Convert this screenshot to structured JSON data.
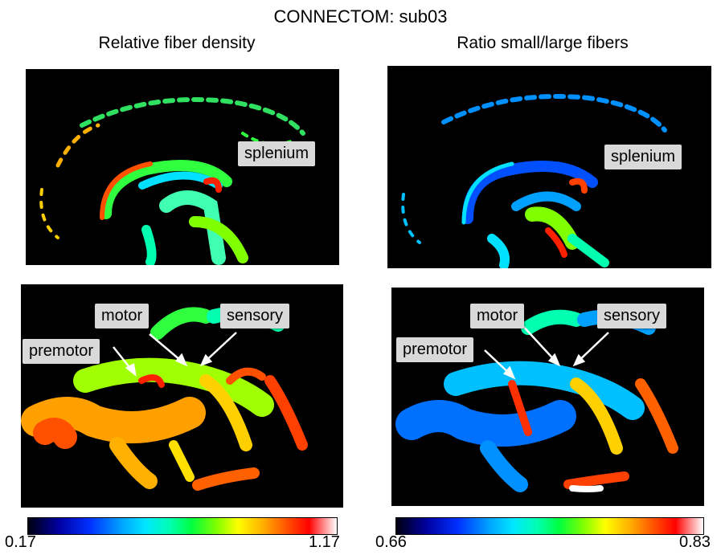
{
  "title": "CONNECTOM: sub03",
  "columns": {
    "left": "Relative fiber density",
    "right": "Ratio small/large fibers"
  },
  "panels": {
    "top_left": {
      "labels": {
        "splenium": "splenium"
      }
    },
    "top_right": {
      "labels": {
        "splenium": "splenium"
      }
    },
    "bottom_left": {
      "labels": {
        "premotor": "premotor",
        "motor": "motor",
        "sensory": "sensory"
      }
    },
    "bottom_right": {
      "labels": {
        "premotor": "premotor",
        "motor": "motor",
        "sensory": "sensory"
      }
    }
  },
  "colorbars": {
    "left": {
      "min": "0.17",
      "max": "1.17"
    },
    "right": {
      "min": "0.66",
      "max": "0.83"
    }
  },
  "colormap": [
    "#000010",
    "#0000a0",
    "#0030ff",
    "#00a0ff",
    "#00e6ff",
    "#00ffb0",
    "#00ff40",
    "#80ff00",
    "#ffff00",
    "#ffb000",
    "#ff5000",
    "#ff0000",
    "#ff9090",
    "#ffffff"
  ]
}
